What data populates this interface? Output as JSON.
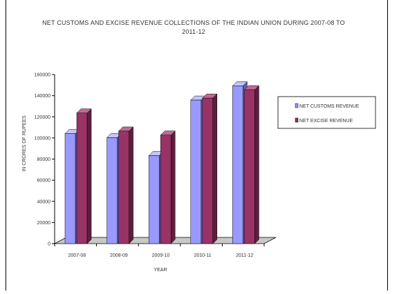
{
  "chart_data": {
    "type": "bar",
    "title_line1": "NET CUSTOMS AND EXCISE REVENUE COLLECTIONS OF THE INDIAN UNION DURING 2007-08 TO",
    "title_line2": "2011-12",
    "xlabel": "YEAR",
    "ylabel": "IN CRORES OF RUPEES",
    "categories": [
      "2007-08",
      "2008-09",
      "2009-10",
      "2010-11",
      "2011-12"
    ],
    "series": [
      {
        "name": "NET CUSTOMS REVENUE",
        "values": [
          104100,
          100300,
          83300,
          135800,
          149300
        ]
      },
      {
        "name": "NET EXCISE REVENUE",
        "values": [
          123600,
          106500,
          102700,
          137700,
          145600
        ]
      }
    ],
    "ylim": [
      0,
      160000
    ],
    "yticks": [
      0,
      20000,
      40000,
      60000,
      80000,
      100000,
      120000,
      140000,
      160000
    ],
    "ytick_labels": [
      "0",
      "20000",
      "40000",
      "60000",
      "80000",
      "100000",
      "120000",
      "140000",
      "160000"
    ],
    "grid": false,
    "legend_position": "right",
    "colors": {
      "customs_front": "#9999FF",
      "customs_side": "#5C5CB8",
      "customs_top": "#C4C4FF",
      "excise_front": "#993366",
      "excise_side": "#5E1E3E",
      "excise_top": "#C06B93",
      "floor": "#C8C8C8",
      "axis": "#000000"
    }
  }
}
